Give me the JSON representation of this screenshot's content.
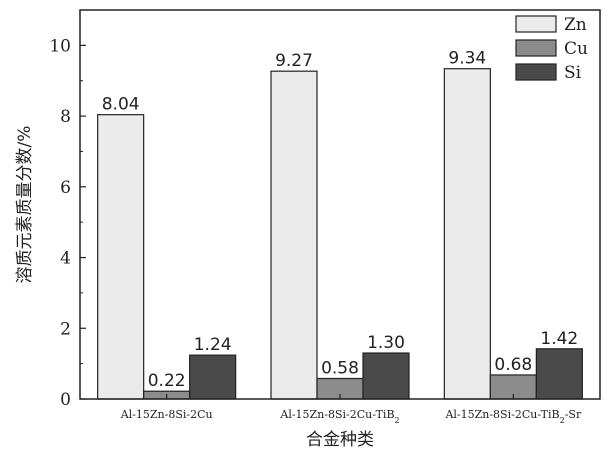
{
  "chart_data": {
    "type": "bar",
    "categories": [
      {
        "base": "Al-15Zn-8Si-2Cu",
        "sub": "",
        "tail": ""
      },
      {
        "base": "Al-15Zn-8Si-2Cu-TiB",
        "sub": "2",
        "tail": ""
      },
      {
        "base": "Al-15Zn-8Si-2Cu-TiB",
        "sub": "2",
        "tail": "-Sr"
      }
    ],
    "series": [
      {
        "name": "Zn",
        "values": [
          8.04,
          9.27,
          9.34
        ],
        "labels": [
          "8.04",
          "9.27",
          "9.34"
        ],
        "color": "#ebebeb"
      },
      {
        "name": "Cu",
        "values": [
          0.22,
          0.58,
          0.68
        ],
        "labels": [
          "0.22",
          "0.58",
          "0.68"
        ],
        "color": "#8c8c8c"
      },
      {
        "name": "Si",
        "values": [
          1.24,
          1.3,
          1.42
        ],
        "labels": [
          "1.24",
          "1.30",
          "1.42"
        ],
        "color": "#4a4a4a"
      }
    ],
    "xlabel": "合金种类",
    "ylabel": "溶质元素质量分数/%",
    "ylim": [
      0,
      11
    ],
    "yticks": [
      "0",
      "2",
      "4",
      "6",
      "8",
      "10"
    ],
    "grid": false,
    "legend_position": "top-right"
  }
}
